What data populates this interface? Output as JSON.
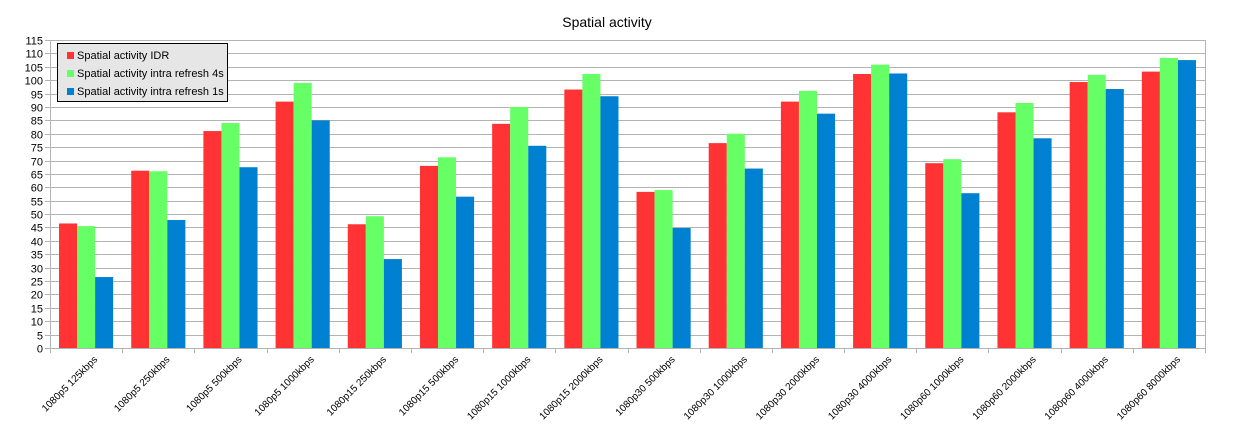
{
  "chart_data": {
    "type": "bar",
    "title": "Spatial activity",
    "xlabel": "",
    "ylabel": "",
    "ylim": [
      0,
      115
    ],
    "ytick_step": 5,
    "grid": true,
    "legend_position": "top-left",
    "categories": [
      "1080p5 125kbps",
      "1080p5 250kbps",
      "1080p5 500kbps",
      "1080p5 1000kbps",
      "1080p15 250kbps",
      "1080p15 500kbps",
      "1080p15 1000kbps",
      "1080p15 2000kbps",
      "1080p30 500kbps",
      "1080p30 1000kbps",
      "1080p30 2000kbps",
      "1080p30 4000kbps",
      "1080p60 1000kbps",
      "1080p60 2000kbps",
      "1080p60 4000kbps",
      "1080p60 8000kbps"
    ],
    "series": [
      {
        "name": "Spatial activity IDR",
        "color": "#ff3333",
        "values": [
          46.5,
          66.2,
          81.0,
          92.0,
          46.2,
          68.0,
          83.7,
          96.5,
          58.3,
          76.5,
          92.0,
          102.3,
          69.0,
          88.0,
          99.3,
          103.2
        ]
      },
      {
        "name": "Spatial activity intra refresh 4s",
        "color": "#66ff66",
        "values": [
          45.5,
          66.0,
          84.0,
          99.0,
          49.2,
          71.2,
          90.0,
          102.3,
          59.0,
          80.0,
          96.0,
          105.8,
          70.5,
          91.5,
          102.0,
          108.3
        ]
      },
      {
        "name": "Spatial activity intra refresh 1s",
        "color": "#0080d0",
        "values": [
          26.5,
          47.8,
          67.5,
          85.0,
          33.2,
          56.5,
          75.5,
          94.0,
          44.8,
          67.0,
          87.5,
          102.5,
          57.8,
          78.3,
          96.7,
          107.5
        ]
      }
    ]
  }
}
